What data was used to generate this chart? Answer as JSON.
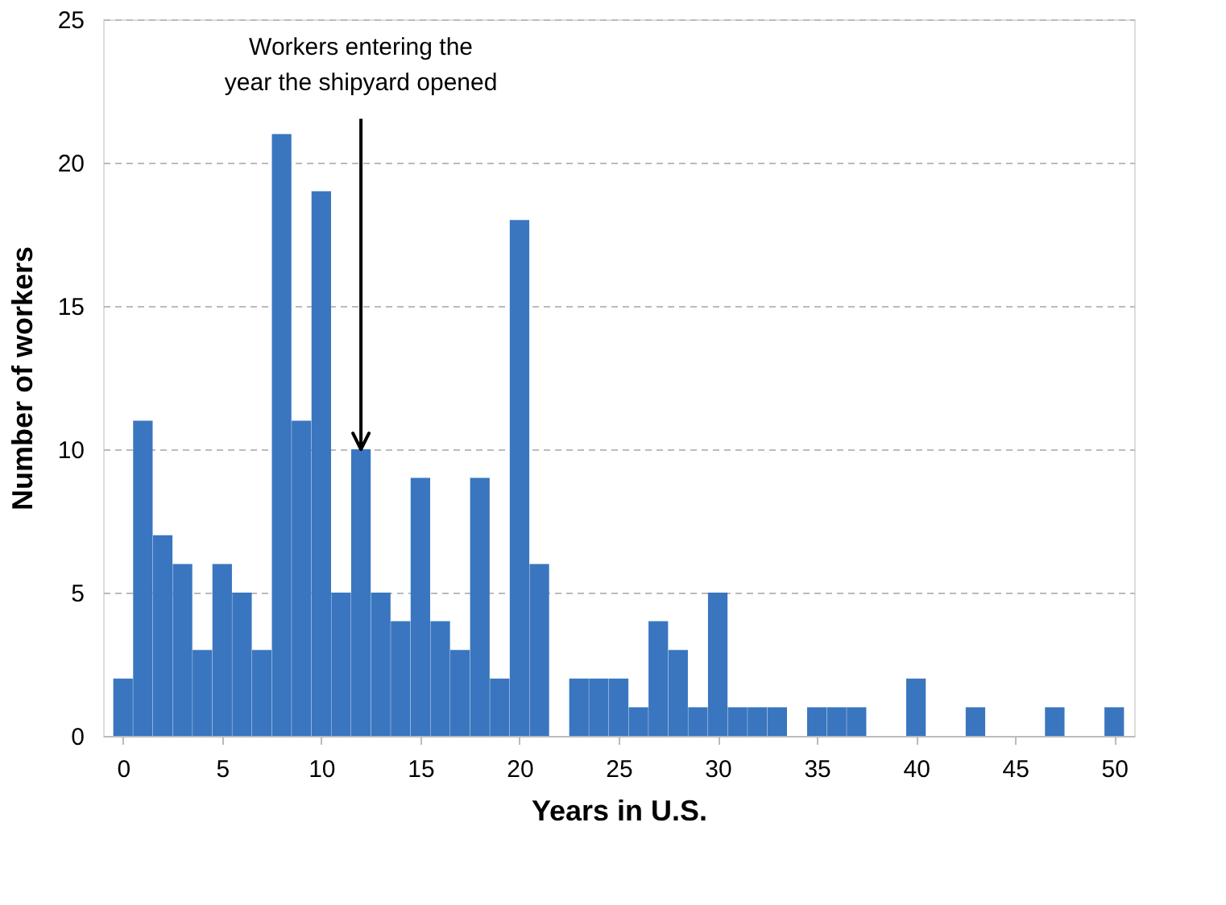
{
  "chart_data": {
    "type": "bar",
    "xlabel": "Years in U.S.",
    "ylabel": "Number of workers",
    "x": [
      0,
      1,
      2,
      3,
      4,
      5,
      6,
      7,
      8,
      9,
      10,
      11,
      12,
      13,
      14,
      15,
      16,
      17,
      18,
      19,
      20,
      21,
      22,
      23,
      24,
      25,
      26,
      27,
      28,
      29,
      30,
      31,
      32,
      33,
      34,
      35,
      36,
      37,
      38,
      39,
      40,
      41,
      42,
      43,
      44,
      45,
      46,
      47,
      48,
      49,
      50
    ],
    "values": [
      2,
      11,
      7,
      6,
      3,
      6,
      5,
      3,
      21,
      11,
      19,
      5,
      10,
      5,
      4,
      9,
      4,
      3,
      9,
      2,
      18,
      6,
      0,
      2,
      2,
      2,
      1,
      4,
      3,
      1,
      5,
      1,
      1,
      1,
      0,
      1,
      1,
      1,
      0,
      0,
      2,
      0,
      0,
      1,
      0,
      0,
      0,
      1,
      0,
      0,
      1
    ],
    "color": "#3a76bf",
    "xlim": [
      -0.6,
      50.6
    ],
    "xticks": [
      0,
      5,
      10,
      15,
      20,
      25,
      30,
      35,
      40,
      45,
      50
    ],
    "ylim": [
      0,
      25
    ],
    "yticks": [
      0,
      5,
      10,
      15,
      20,
      25
    ],
    "grid": "y",
    "annotations": [
      {
        "text": "Workers entering the\nyear the shipyard opened",
        "x": 12,
        "y": 10
      }
    ]
  }
}
